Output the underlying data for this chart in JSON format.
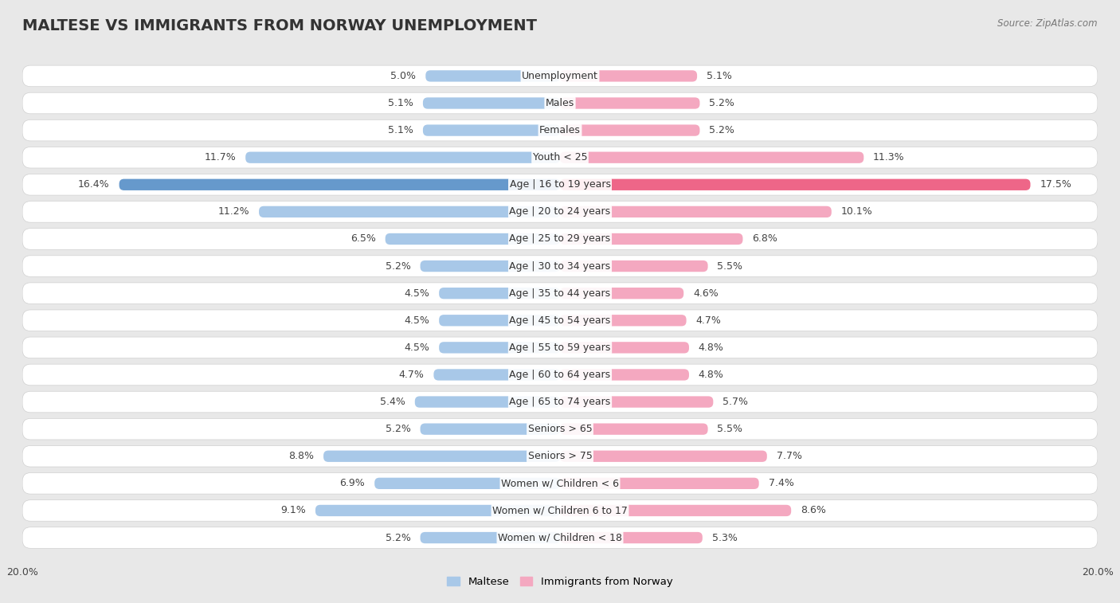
{
  "title": "MALTESE VS IMMIGRANTS FROM NORWAY UNEMPLOYMENT",
  "source": "Source: ZipAtlas.com",
  "categories": [
    "Unemployment",
    "Males",
    "Females",
    "Youth < 25",
    "Age | 16 to 19 years",
    "Age | 20 to 24 years",
    "Age | 25 to 29 years",
    "Age | 30 to 34 years",
    "Age | 35 to 44 years",
    "Age | 45 to 54 years",
    "Age | 55 to 59 years",
    "Age | 60 to 64 years",
    "Age | 65 to 74 years",
    "Seniors > 65",
    "Seniors > 75",
    "Women w/ Children < 6",
    "Women w/ Children 6 to 17",
    "Women w/ Children < 18"
  ],
  "maltese": [
    5.0,
    5.1,
    5.1,
    11.7,
    16.4,
    11.2,
    6.5,
    5.2,
    4.5,
    4.5,
    4.5,
    4.7,
    5.4,
    5.2,
    8.8,
    6.9,
    9.1,
    5.2
  ],
  "norway": [
    5.1,
    5.2,
    5.2,
    11.3,
    17.5,
    10.1,
    6.8,
    5.5,
    4.6,
    4.7,
    4.8,
    4.8,
    5.7,
    5.5,
    7.7,
    7.4,
    8.6,
    5.3
  ],
  "maltese_color": "#a8c8e8",
  "norway_color": "#f4a8c0",
  "highlight_maltese_color": "#6699cc",
  "highlight_norway_color": "#ee6688",
  "bg_color": "#e8e8e8",
  "row_bg": "#ffffff",
  "row_border": "#d0d0d0",
  "xlim": 20.0,
  "legend_maltese": "Maltese",
  "legend_norway": "Immigrants from Norway",
  "title_fontsize": 14,
  "label_fontsize": 9,
  "cat_fontsize": 9
}
